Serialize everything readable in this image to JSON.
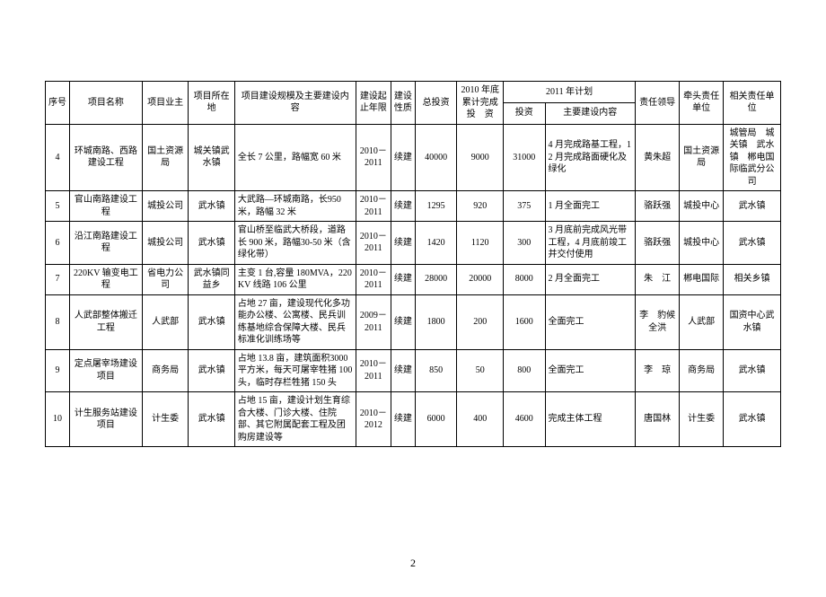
{
  "headers": {
    "seq": "序号",
    "name": "项目名称",
    "owner": "项目业主",
    "location": "项目所在地",
    "scale": "项目建设规模及主要建设内容",
    "period": "建设起止年限",
    "nature": "建设性质",
    "total_invest": "总投资",
    "cum_2010": "2010 年底累计完成投　资",
    "plan_2011": "2011 年计划",
    "plan_invest": "投资",
    "plan_content": "主要建设内容",
    "leader": "责任领导",
    "lead_unit": "牵头责任单位",
    "rel_unit": "相关责任单位"
  },
  "rows": [
    {
      "seq": "4",
      "name": "环城南路、西路建设工程",
      "owner": "国土资源局",
      "location": "城关镇武水镇",
      "scale": "全长 7 公里，路幅宽 60 米",
      "period": "2010－2011",
      "nature": "续建",
      "total": "40000",
      "cum": "9000",
      "inv": "31000",
      "pcont": "4 月完成路基工程，12 月完成路面硬化及绿化",
      "leader": "黄朱超",
      "lead_unit": "国土资源局",
      "rel_unit": "城管局　城关镇　武水镇　郴电国际临武分公司"
    },
    {
      "seq": "5",
      "name": "官山南路建设工程",
      "owner": "城投公司",
      "location": "武水镇",
      "scale": "大武路—环城南路，长950 米，路幅 32 米",
      "period": "2010－2011",
      "nature": "续建",
      "total": "1295",
      "cum": "920",
      "inv": "375",
      "pcont": "1 月全面完工",
      "leader": "骆跃强",
      "lead_unit": "城投中心",
      "rel_unit": "武水镇"
    },
    {
      "seq": "6",
      "name": "沿江南路建设工程",
      "owner": "城投公司",
      "location": "武水镇",
      "scale": "官山桥至临武大桥段，道路长 900 米，路幅30-50 米（含绿化带）",
      "period": "2010－2011",
      "nature": "续建",
      "total": "1420",
      "cum": "1120",
      "inv": "300",
      "pcont": "3 月底前完成风光带工程，4 月底前竣工并交付使用",
      "leader": "骆跃强",
      "lead_unit": "城投中心",
      "rel_unit": "武水镇"
    },
    {
      "seq": "7",
      "name": "220KV 输变电工程",
      "owner": "省电力公司",
      "location": "武水镇同益乡",
      "scale": "主变 1 台,容量 180MVA，220KV 线路 106 公里",
      "period": "2010－2011",
      "nature": "续建",
      "total": "28000",
      "cum": "20000",
      "inv": "8000",
      "pcont": "2 月全面完工",
      "leader": "朱　江",
      "lead_unit": "郴电国际",
      "rel_unit": "相关乡镇"
    },
    {
      "seq": "8",
      "name": "人武部整体搬迁工程",
      "owner": "人武部",
      "location": "武水镇",
      "scale": "占地 27 亩，建设现代化多功能办公楼、公寓楼、民兵训练基地综合保障大楼、民兵标准化训练场等",
      "period": "2009－2011",
      "nature": "续建",
      "total": "1800",
      "cum": "200",
      "inv": "1600",
      "pcont": "全面完工",
      "leader": "李　豹候全洪",
      "lead_unit": "人武部",
      "rel_unit": "国资中心武水镇"
    },
    {
      "seq": "9",
      "name": "定点屠宰场建设项目",
      "owner": "商务局",
      "location": "武水镇",
      "scale": "占地 13.8 亩，建筑面积3000 平方米，每天可屠宰牲猪 100 头，临时存栏牲猪 150 头",
      "period": "2010－2011",
      "nature": "续建",
      "total": "850",
      "cum": "50",
      "inv": "800",
      "pcont": "全面完工",
      "leader": "李　琼",
      "lead_unit": "商务局",
      "rel_unit": "武水镇"
    },
    {
      "seq": "10",
      "name": "计生服务站建设项目",
      "owner": "计生委",
      "location": "武水镇",
      "scale": "占地 15 亩，建设计划生育综合大楼、门诊大楼、住院部、其它附属配套工程及团购房建设等",
      "period": "2010－2012",
      "nature": "续建",
      "total": "6000",
      "cum": "400",
      "inv": "4600",
      "pcont": "完成主体工程",
      "leader": "唐国林",
      "lead_unit": "计生委",
      "rel_unit": "武水镇"
    }
  ],
  "page_number": "2"
}
